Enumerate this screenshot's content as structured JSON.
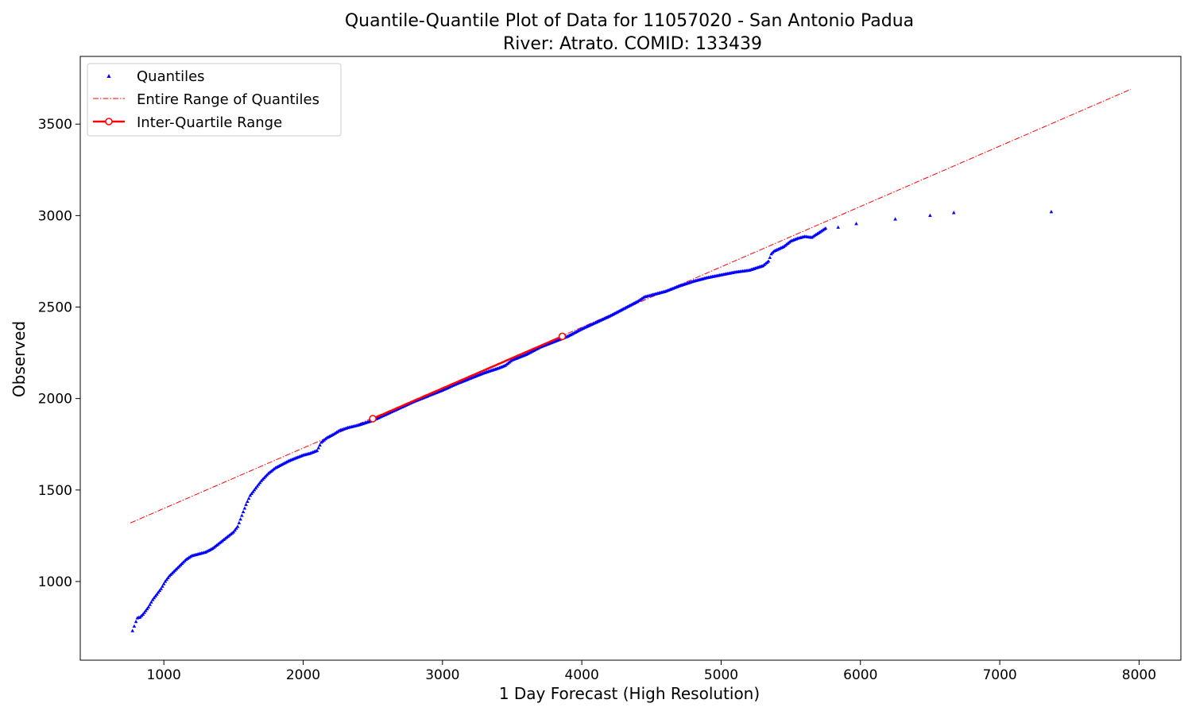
{
  "chart_data": {
    "type": "scatter",
    "title_line1": "Quantile-Quantile Plot of Data for 11057020 - San Antonio Padua",
    "title_line2": "River: Atrato. COMID: 133439",
    "xlabel": "1 Day Forecast (High Resolution)",
    "ylabel": "Observed",
    "xlim": [
      400,
      8300
    ],
    "ylim": [
      570,
      3870
    ],
    "x_ticks": [
      1000,
      2000,
      3000,
      4000,
      5000,
      6000,
      7000,
      8000
    ],
    "y_ticks": [
      1000,
      1500,
      2000,
      2500,
      3000,
      3500
    ],
    "colors": {
      "quantiles": "#0000ff",
      "entire_range": "#ff0000",
      "iqr": "#ff0000"
    },
    "legend": {
      "placement": "top-left",
      "entries": [
        "Quantiles",
        "Entire Range of Quantiles",
        "Inter-Quartile Range"
      ]
    },
    "quantile_points": [
      [
        775,
        730
      ],
      [
        800,
        780
      ],
      [
        810,
        800
      ],
      [
        830,
        805
      ],
      [
        850,
        820
      ],
      [
        870,
        840
      ],
      [
        890,
        860
      ],
      [
        920,
        900
      ],
      [
        950,
        930
      ],
      [
        980,
        960
      ],
      [
        1010,
        1000
      ],
      [
        1040,
        1030
      ],
      [
        1080,
        1060
      ],
      [
        1120,
        1090
      ],
      [
        1160,
        1120
      ],
      [
        1200,
        1140
      ],
      [
        1250,
        1150
      ],
      [
        1300,
        1160
      ],
      [
        1350,
        1180
      ],
      [
        1400,
        1210
      ],
      [
        1450,
        1240
      ],
      [
        1500,
        1270
      ],
      [
        1530,
        1300
      ],
      [
        1560,
        1360
      ],
      [
        1590,
        1420
      ],
      [
        1620,
        1470
      ],
      [
        1660,
        1510
      ],
      [
        1700,
        1550
      ],
      [
        1750,
        1590
      ],
      [
        1800,
        1620
      ],
      [
        1850,
        1640
      ],
      [
        1900,
        1660
      ],
      [
        1950,
        1675
      ],
      [
        2000,
        1690
      ],
      [
        2050,
        1700
      ],
      [
        2100,
        1715
      ],
      [
        2130,
        1760
      ],
      [
        2170,
        1785
      ],
      [
        2220,
        1805
      ],
      [
        2260,
        1825
      ],
      [
        2320,
        1840
      ],
      [
        2400,
        1855
      ],
      [
        2500,
        1880
      ],
      [
        2600,
        1915
      ],
      [
        2700,
        1950
      ],
      [
        2800,
        1985
      ],
      [
        2900,
        2015
      ],
      [
        3000,
        2045
      ],
      [
        3100,
        2080
      ],
      [
        3200,
        2110
      ],
      [
        3300,
        2140
      ],
      [
        3400,
        2165
      ],
      [
        3450,
        2180
      ],
      [
        3500,
        2210
      ],
      [
        3600,
        2240
      ],
      [
        3700,
        2280
      ],
      [
        3800,
        2310
      ],
      [
        3900,
        2340
      ],
      [
        4000,
        2380
      ],
      [
        4100,
        2415
      ],
      [
        4200,
        2450
      ],
      [
        4300,
        2490
      ],
      [
        4400,
        2530
      ],
      [
        4450,
        2555
      ],
      [
        4500,
        2565
      ],
      [
        4600,
        2585
      ],
      [
        4700,
        2615
      ],
      [
        4800,
        2640
      ],
      [
        4900,
        2660
      ],
      [
        5000,
        2675
      ],
      [
        5100,
        2690
      ],
      [
        5200,
        2700
      ],
      [
        5300,
        2725
      ],
      [
        5340,
        2750
      ],
      [
        5360,
        2790
      ],
      [
        5380,
        2805
      ],
      [
        5450,
        2830
      ],
      [
        5500,
        2860
      ],
      [
        5550,
        2875
      ],
      [
        5600,
        2885
      ],
      [
        5650,
        2880
      ],
      [
        5700,
        2905
      ],
      [
        5750,
        2930
      ],
      [
        5840,
        2935
      ],
      [
        5970,
        2955
      ],
      [
        6250,
        2980
      ],
      [
        6500,
        3000
      ],
      [
        6670,
        3015
      ],
      [
        7370,
        3020
      ]
    ],
    "entire_range_line": [
      [
        760,
        1320
      ],
      [
        7940,
        3690
      ]
    ],
    "iqr_line": [
      [
        2500,
        1890
      ],
      [
        3860,
        2340
      ]
    ]
  }
}
